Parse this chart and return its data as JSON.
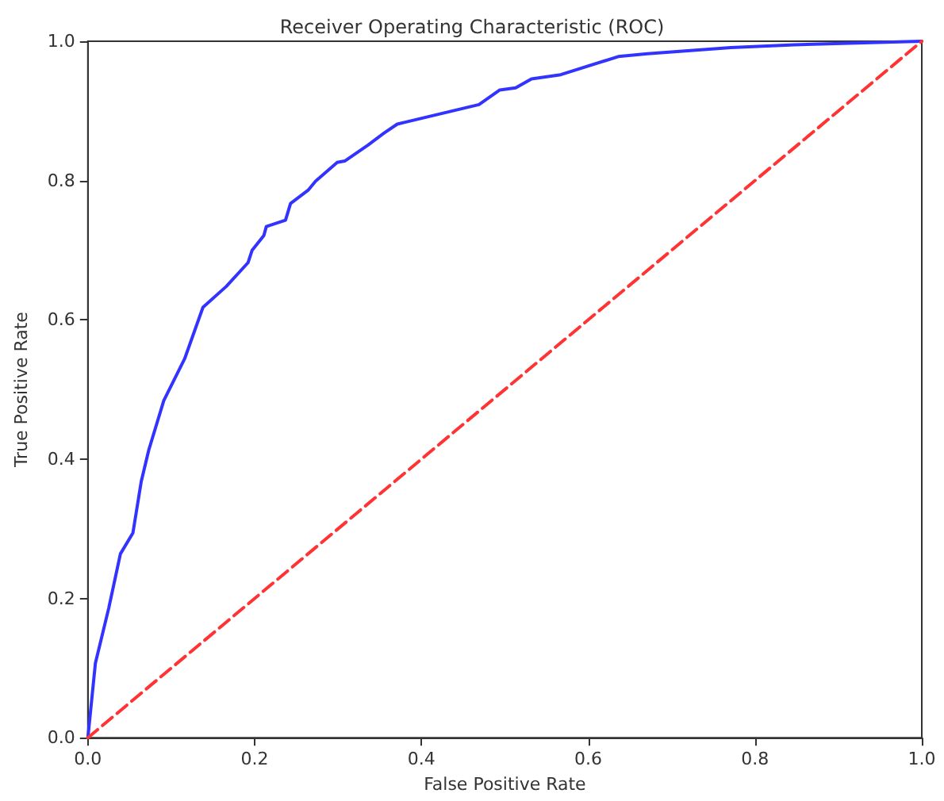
{
  "chart_data": {
    "type": "line",
    "title": "Receiver Operating Characteristic (ROC)",
    "xlabel": "False Positive Rate",
    "ylabel": "True Positive Rate",
    "series": [
      {
        "color": "#3333ff",
        "line_style": "solid",
        "x": [
          0,
          0.009,
          0.025,
          0.039,
          0.054,
          0.064,
          0.073,
          0.091,
          0.116,
          0.138,
          0.166,
          0.192,
          0.197,
          0.211,
          0.214,
          0.237,
          0.243,
          0.264,
          0.273,
          0.299,
          0.308,
          0.336,
          0.355,
          0.371,
          0.469,
          0.494,
          0.513,
          0.532,
          0.567,
          0.636,
          0.671,
          0.771,
          0.847,
          1
        ],
        "values": [
          0,
          0.107,
          0.186,
          0.264,
          0.294,
          0.368,
          0.413,
          0.484,
          0.544,
          0.618,
          0.648,
          0.682,
          0.7,
          0.721,
          0.734,
          0.743,
          0.767,
          0.786,
          0.799,
          0.826,
          0.828,
          0.851,
          0.868,
          0.881,
          0.909,
          0.93,
          0.933,
          0.946,
          0.952,
          0.978,
          0.982,
          0.991,
          0.995,
          1
        ]
      },
      {
        "color": "#ff3333",
        "line_style": "dashed",
        "x": [
          0,
          1
        ],
        "values": [
          0,
          1
        ]
      }
    ],
    "xlim": [
      0,
      1
    ],
    "ylim": [
      0,
      1
    ],
    "xticks": [
      {
        "value": 0,
        "label": "0.0"
      },
      0.2,
      0.4,
      0.6,
      0.8,
      {
        "value": 1,
        "label": "1.0"
      }
    ],
    "yticks": [
      {
        "value": 0,
        "label": "0.0"
      },
      0.2,
      0.4,
      0.6,
      0.8,
      {
        "value": 1,
        "label": "1.0"
      }
    ],
    "grid": false,
    "marker": "none"
  }
}
